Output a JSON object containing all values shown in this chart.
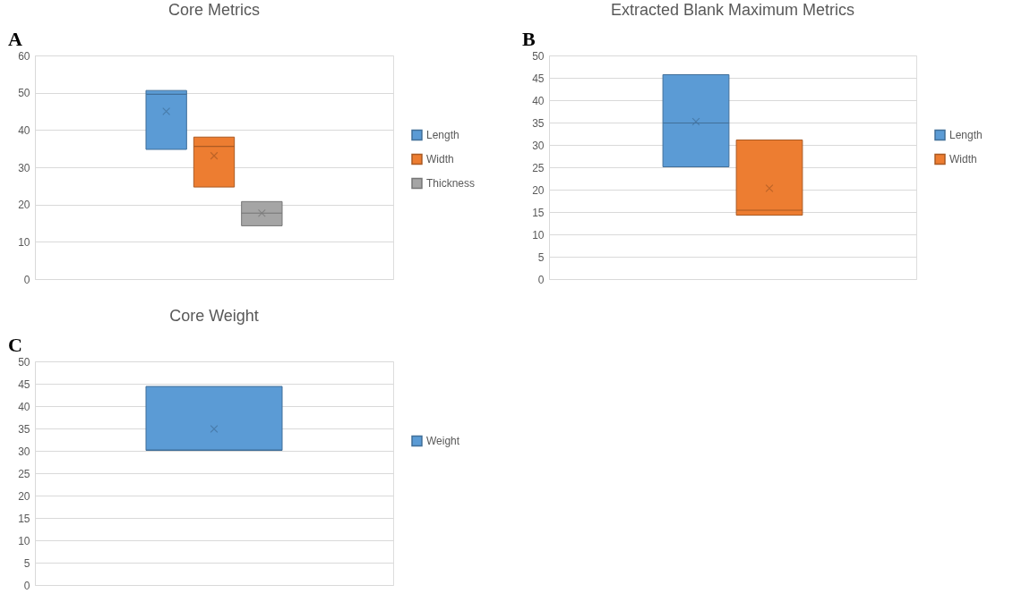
{
  "chart_data": [
    {
      "type": "box",
      "title": "Core Metrics",
      "annotations": [
        "A"
      ],
      "categories": [
        null
      ],
      "ylim": [
        0,
        60
      ],
      "yticks": [
        0,
        10,
        20,
        30,
        40,
        50,
        60
      ],
      "grid": "y",
      "legend": "right",
      "tick_labels": "y",
      "marker": "cross",
      "series": [
        {
          "name": "Length",
          "color": "#5b9bd5",
          "boxes": [
            {
              "low": 34.8,
              "q1": 34.8,
              "median": 49.6,
              "q3": 50.6,
              "high": 50.6,
              "mean": 45.0
            }
          ]
        },
        {
          "name": "Width",
          "color": "#ed7d31",
          "boxes": [
            {
              "low": 24.7,
              "q1": 24.7,
              "median": 35.6,
              "q3": 38.1,
              "high": 38.1,
              "mean": 33.1
            }
          ]
        },
        {
          "name": "Thickness",
          "color": "#a5a5a5",
          "boxes": [
            {
              "low": 14.3,
              "q1": 14.3,
              "median": 17.7,
              "q3": 20.8,
              "high": 20.8,
              "mean": 17.7
            }
          ]
        }
      ]
    },
    {
      "type": "box",
      "title": "Extracted Blank Maximum Metrics",
      "annotations": [
        "B"
      ],
      "categories": [
        null
      ],
      "ylim": [
        0,
        50
      ],
      "yticks": [
        0,
        5,
        10,
        15,
        20,
        25,
        30,
        35,
        40,
        45,
        50
      ],
      "grid": "y",
      "legend": "right",
      "tick_labels": "y",
      "marker": "cross",
      "series": [
        {
          "name": "Length",
          "color": "#5b9bd5",
          "boxes": [
            {
              "low": 25.1,
              "q1": 25.1,
              "median": 34.9,
              "q3": 45.7,
              "high": 45.7,
              "mean": 35.2
            }
          ]
        },
        {
          "name": "Width",
          "color": "#ed7d31",
          "boxes": [
            {
              "low": 14.3,
              "q1": 14.3,
              "median": 15.4,
              "q3": 31.1,
              "high": 31.1,
              "mean": 20.3
            }
          ]
        }
      ]
    },
    {
      "type": "box",
      "title": "Core Weight",
      "annotations": [
        "C"
      ],
      "categories": [
        null
      ],
      "ylim": [
        0,
        50
      ],
      "yticks": [
        0,
        5,
        10,
        15,
        20,
        25,
        30,
        35,
        40,
        45,
        50
      ],
      "grid": "y",
      "legend": "right",
      "tick_labels": "y",
      "marker": "cross",
      "series": [
        {
          "name": "Weight",
          "color": "#5b9bd5",
          "boxes": [
            {
              "low": 30.1,
              "q1": 30.1,
              "median": 30.2,
              "q3": 44.4,
              "high": 44.4,
              "mean": 34.9
            }
          ]
        }
      ]
    }
  ]
}
